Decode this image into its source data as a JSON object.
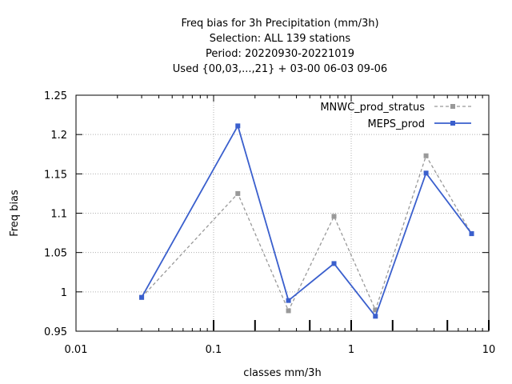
{
  "chart_data": {
    "type": "line",
    "title_lines": [
      "Freq bias  for 3h Precipitation (mm/3h)",
      "Selection: ALL     139 stations",
      "Period: 20220930-20221019",
      "Used {00,03,...,21} + 03-00 06-03 09-06"
    ],
    "xlabel": "classes mm/3h",
    "ylabel": "Freq bias",
    "xscale": "log",
    "xlim": [
      0.01,
      10
    ],
    "ylim": [
      0.95,
      1.25
    ],
    "grid": true,
    "legend_position": "top-right",
    "x_ticks": [
      {
        "value": 0.01,
        "label": "0.01"
      },
      {
        "value": 0.1,
        "label": "0.1"
      },
      {
        "value": 1,
        "label": "1"
      },
      {
        "value": 10,
        "label": "10"
      }
    ],
    "y_ticks": [
      {
        "value": 0.95,
        "label": "0.95"
      },
      {
        "value": 1.0,
        "label": "1"
      },
      {
        "value": 1.05,
        "label": "1.05"
      },
      {
        "value": 1.1,
        "label": "1.1"
      },
      {
        "value": 1.15,
        "label": "1.15"
      },
      {
        "value": 1.2,
        "label": "1.2"
      },
      {
        "value": 1.25,
        "label": "1.25"
      }
    ],
    "class_markers": [
      0.1,
      0.2,
      0.5,
      1,
      2,
      5,
      10,
      20
    ],
    "series": [
      {
        "name": "MNWC_prod_stratus",
        "color": "#999999",
        "dashed": true,
        "points": [
          {
            "x": 0.03,
            "y": 0.993
          },
          {
            "x": 0.15,
            "y": 1.125
          },
          {
            "x": 0.35,
            "y": 0.976
          },
          {
            "x": 0.75,
            "y": 1.096
          },
          {
            "x": 1.5,
            "y": 0.977
          },
          {
            "x": 3.5,
            "y": 1.173
          },
          {
            "x": 7.5,
            "y": 1.074
          }
        ]
      },
      {
        "name": "MEPS_prod",
        "color": "#3a5fcd",
        "dashed": false,
        "points": [
          {
            "x": 0.03,
            "y": 0.993
          },
          {
            "x": 0.15,
            "y": 1.211
          },
          {
            "x": 0.35,
            "y": 0.989
          },
          {
            "x": 0.75,
            "y": 1.036
          },
          {
            "x": 1.5,
            "y": 0.969
          },
          {
            "x": 3.5,
            "y": 1.151
          },
          {
            "x": 7.5,
            "y": 1.074
          }
        ]
      }
    ]
  }
}
